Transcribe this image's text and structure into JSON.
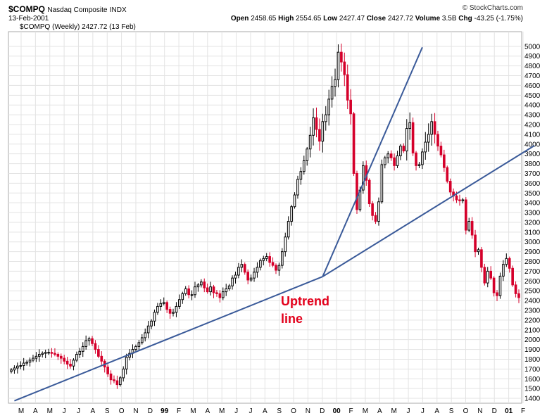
{
  "header": {
    "symbol": "$COMPQ",
    "name": "Nasdaq Composite",
    "exchange": "INDX",
    "date": "13-Feb-2001",
    "legend": "$COMPQ (Weekly) 2427.72 (13 Feb)",
    "watermark": "© StockCharts.com",
    "open_label": "Open",
    "open": "2458.65",
    "high_label": "High",
    "high": "2554.65",
    "low_label": "Low",
    "low": "2427.47",
    "close_label": "Close",
    "close": "2427.72",
    "volume_label": "Volume",
    "volume": "3.5B",
    "chg_label": "Chg",
    "chg": "-43.25 (-1.75%)"
  },
  "annotation": {
    "line1": "Uptrend",
    "line2": "line"
  },
  "colors": {
    "up": "#000000",
    "down": "#d5002b",
    "trend": "#3a5a99",
    "grid": "#e3e3e3",
    "annotation": "#e3001b"
  },
  "chart_data": {
    "type": "candlestick",
    "title": "$COMPQ Nasdaq Composite INDX",
    "frequency": "weekly",
    "ylim": [
      1350,
      5150
    ],
    "y_ticks": [
      1400,
      1500,
      1600,
      1700,
      1800,
      1900,
      2000,
      2100,
      2200,
      2300,
      2400,
      2500,
      2600,
      2700,
      2800,
      2900,
      3000,
      3100,
      3200,
      3300,
      3400,
      3500,
      3600,
      3700,
      3800,
      3900,
      4000,
      4100,
      4200,
      4300,
      4400,
      4500,
      4600,
      4700,
      4800,
      4900,
      5000
    ],
    "x_tick_labels": [
      "M",
      "A",
      "M",
      "J",
      "J",
      "A",
      "S",
      "O",
      "N",
      "D",
      "99",
      "F",
      "M",
      "A",
      "M",
      "J",
      "J",
      "A",
      "S",
      "O",
      "N",
      "D",
      "00",
      "F",
      "M",
      "A",
      "M",
      "J",
      "J",
      "A",
      "S",
      "O",
      "N",
      "D",
      "01",
      "F"
    ],
    "closes": [
      1690,
      1710,
      1730,
      1735,
      1760,
      1770,
      1790,
      1810,
      1830,
      1850,
      1860,
      1870,
      1870,
      1860,
      1850,
      1830,
      1810,
      1780,
      1750,
      1730,
      1790,
      1850,
      1880,
      1930,
      1990,
      2010,
      1960,
      1900,
      1830,
      1780,
      1720,
      1650,
      1590,
      1580,
      1540,
      1610,
      1700,
      1820,
      1860,
      1900,
      1930,
      1970,
      2020,
      2070,
      2140,
      2190,
      2280,
      2340,
      2370,
      2380,
      2310,
      2270,
      2280,
      2340,
      2410,
      2470,
      2520,
      2460,
      2460,
      2540,
      2560,
      2590,
      2530,
      2490,
      2540,
      2480,
      2470,
      2430,
      2490,
      2520,
      2550,
      2630,
      2660,
      2740,
      2770,
      2690,
      2610,
      2630,
      2690,
      2740,
      2810,
      2830,
      2850,
      2790,
      2760,
      2710,
      2760,
      2900,
      3050,
      3210,
      3360,
      3480,
      3640,
      3720,
      3830,
      3950,
      4090,
      4270,
      4150,
      4030,
      4230,
      4300,
      4460,
      4590,
      4660,
      4940,
      4840,
      4710,
      4450,
      4310,
      3700,
      3330,
      3530,
      3780,
      3630,
      3390,
      3270,
      3210,
      3410,
      3790,
      3860,
      3900,
      3860,
      3780,
      3880,
      3980,
      3930,
      4160,
      4220,
      3910,
      3780,
      3790,
      3920,
      4020,
      4100,
      4230,
      4100,
      3980,
      3890,
      3760,
      3620,
      3510,
      3470,
      3430,
      3420,
      3430,
      3120,
      3210,
      3070,
      2900,
      2920,
      2740,
      2580,
      2700,
      2630,
      2480,
      2450,
      2650,
      2770,
      2830,
      2730,
      2560,
      2470,
      2430
    ],
    "trendlines": [
      {
        "from": {
          "x": 1,
          "y": 1375
        },
        "to": {
          "x": 100,
          "y": 2645
        }
      },
      {
        "from": {
          "x": 100,
          "y": 2645
        },
        "to": {
          "x": 132,
          "y": 4990
        }
      },
      {
        "from": {
          "x": 100,
          "y": 2645
        },
        "to": {
          "x": 168,
          "y": 3985
        }
      }
    ]
  }
}
